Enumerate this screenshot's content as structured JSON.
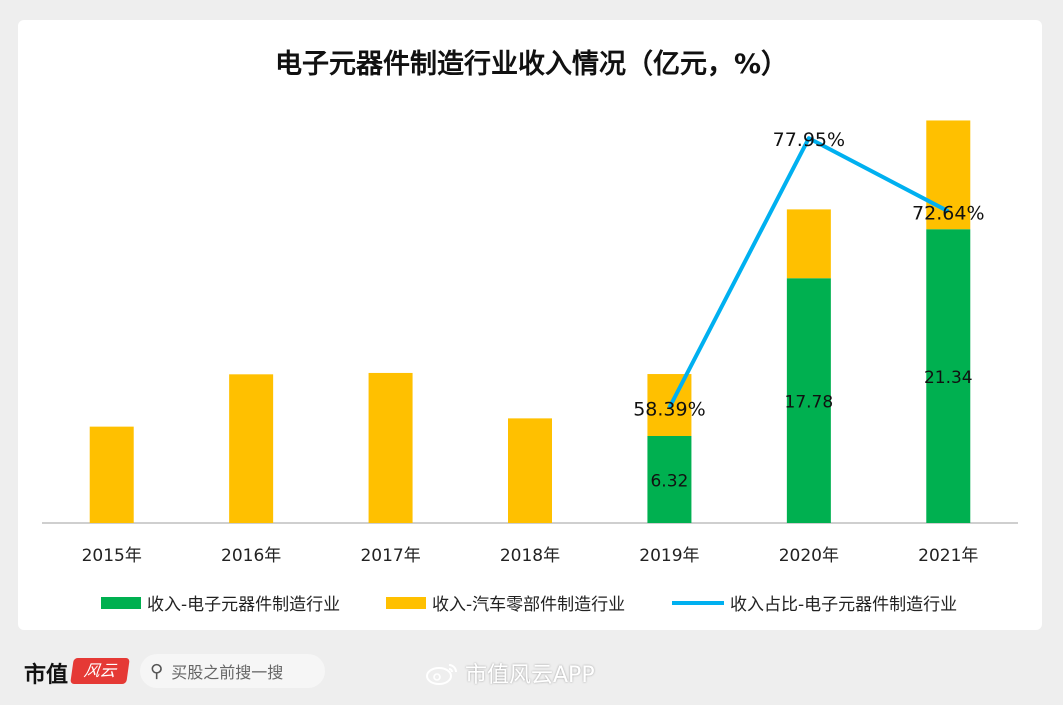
{
  "title": "电子元器件制造行业收入情况（亿元，%）",
  "colors": {
    "electronics": "#00b050",
    "auto_parts": "#ffc000",
    "share_line": "#00b0f0",
    "axis": "#bfbfbf"
  },
  "chart_data": {
    "type": "bar",
    "stacked": true,
    "categories": [
      "2015年",
      "2016年",
      "2017年",
      "2018年",
      "2019年",
      "2020年",
      "2021年"
    ],
    "series": [
      {
        "name": "收入-电子元器件制造行业",
        "kind": "bar",
        "values": [
          0,
          0,
          0,
          0,
          6.32,
          17.78,
          21.34
        ],
        "labels": [
          "",
          "",
          "",
          "",
          "6.32",
          "17.78",
          "21.34"
        ]
      },
      {
        "name": "收入-汽车零部件制造行业",
        "kind": "bar",
        "values": [
          7.0,
          10.8,
          10.9,
          7.6,
          4.5,
          5.0,
          7.9
        ]
      },
      {
        "name": "收入占比-电子元器件制造行业",
        "kind": "line",
        "values": [
          null,
          null,
          null,
          null,
          58.39,
          77.95,
          72.64
        ],
        "labels": [
          "",
          "",
          "",
          "",
          "58.39%",
          "77.95%",
          "72.64%"
        ]
      }
    ],
    "bar_ylim": [
      0,
      30
    ],
    "line_ylim": [
      50,
      80
    ],
    "grid": false,
    "legend_position": "bottom"
  },
  "footer": {
    "brand": "市值",
    "logo_text": "风云",
    "search_placeholder": "买股之前搜一搜",
    "weibo_text": "市值风云APP"
  }
}
